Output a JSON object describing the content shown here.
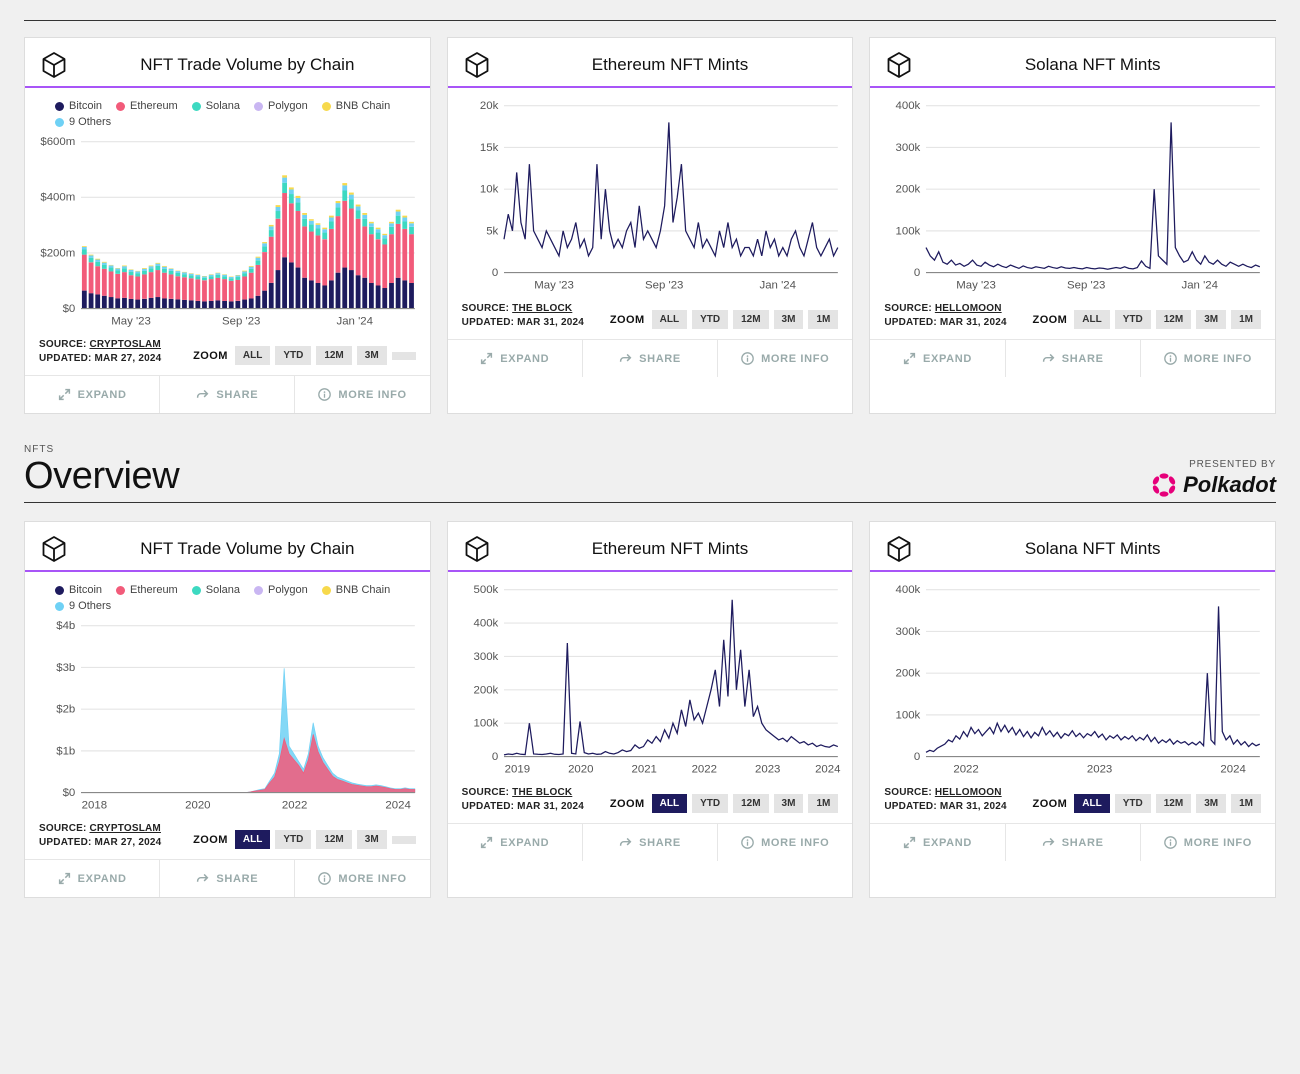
{
  "colors": {
    "line": "#1e1b5e",
    "grid": "#e5e5e5",
    "purple": "#a855f7",
    "legend": {
      "Bitcoin": "#1e1b5e",
      "Ethereum": "#f25b7a",
      "Solana": "#3dd9c1",
      "Polygon": "#c9b6f2",
      "BNB Chain": "#f7d94c",
      "9 Others": "#6fd1f5"
    }
  },
  "section": {
    "kicker": "NFTS",
    "title": "Overview",
    "presented": "PRESENTED BY",
    "brand": "Polkadot"
  },
  "actions": {
    "expand": "EXPAND",
    "share": "SHARE",
    "more": "MORE INFO"
  },
  "zoom_label": "ZOOM",
  "cards": [
    {
      "id": "vol12m",
      "title": "NFT Trade Volume by Chain",
      "type": "stacked-bar",
      "legend": [
        "Bitcoin",
        "Ethereum",
        "Solana",
        "Polygon",
        "BNB Chain",
        "9 Others"
      ],
      "yticks": [
        "$0",
        "$200m",
        "$400m",
        "$600m"
      ],
      "ymax": 650,
      "xticks": [
        "May '23",
        "Sep '23",
        "Jan '24"
      ],
      "xtpos": [
        0.15,
        0.48,
        0.82
      ],
      "series": {
        "Bitcoin": [
          70,
          60,
          55,
          50,
          45,
          40,
          42,
          38,
          35,
          38,
          42,
          45,
          40,
          38,
          36,
          34,
          32,
          30,
          28,
          30,
          32,
          30,
          28,
          30,
          35,
          40,
          50,
          70,
          100,
          150,
          200,
          180,
          160,
          120,
          110,
          100,
          90,
          110,
          140,
          160,
          150,
          130,
          120,
          100,
          90,
          80,
          100,
          120,
          110,
          100
        ],
        "Ethereum": [
          140,
          120,
          110,
          105,
          100,
          95,
          100,
          92,
          90,
          95,
          100,
          105,
          100,
          95,
          90,
          88,
          86,
          84,
          82,
          85,
          88,
          85,
          80,
          82,
          90,
          100,
          120,
          150,
          180,
          200,
          250,
          230,
          220,
          200,
          190,
          185,
          180,
          200,
          220,
          260,
          240,
          220,
          200,
          190,
          180,
          170,
          190,
          210,
          200,
          190
        ],
        "Solana": [
          20,
          18,
          17,
          16,
          15,
          14,
          15,
          14,
          13,
          14,
          15,
          16,
          15,
          14,
          13,
          12,
          12,
          11,
          10,
          11,
          12,
          11,
          10,
          11,
          13,
          15,
          18,
          22,
          26,
          30,
          40,
          36,
          34,
          30,
          28,
          27,
          26,
          30,
          34,
          40,
          36,
          32,
          30,
          28,
          26,
          24,
          28,
          32,
          30,
          28
        ],
        "9 Others": [
          10,
          9,
          9,
          8,
          8,
          7,
          8,
          7,
          7,
          8,
          8,
          9,
          8,
          8,
          7,
          7,
          6,
          6,
          5,
          6,
          6,
          6,
          5,
          6,
          7,
          8,
          10,
          12,
          14,
          16,
          20,
          18,
          17,
          15,
          14,
          14,
          13,
          15,
          17,
          20,
          18,
          16,
          15,
          14,
          13,
          12,
          14,
          16,
          15,
          14
        ],
        "BNB Chain": [
          3,
          3,
          3,
          3,
          2,
          2,
          3,
          2,
          2,
          3,
          3,
          3,
          3,
          2,
          2,
          2,
          2,
          2,
          2,
          2,
          2,
          2,
          2,
          2,
          3,
          3,
          4,
          5,
          6,
          7,
          9,
          8,
          8,
          7,
          6,
          6,
          6,
          7,
          8,
          9,
          8,
          7,
          7,
          6,
          6,
          5,
          6,
          7,
          7,
          6
        ]
      },
      "source_label": "SOURCE:",
      "source_name": "CRYPTOSLAM",
      "updated": "UPDATED: MAR 27, 2024",
      "zoom": [
        "ALL",
        "YTD",
        "12M",
        "3M",
        ""
      ],
      "zoom_active": -1
    },
    {
      "id": "eth12m",
      "title": "Ethereum NFT Mints",
      "type": "line",
      "yticks": [
        "0",
        "5k",
        "10k",
        "15k",
        "20k"
      ],
      "ymax": 20,
      "xticks": [
        "May '23",
        "Sep '23",
        "Jan '24"
      ],
      "xtpos": [
        0.15,
        0.48,
        0.82
      ],
      "values": [
        4,
        7,
        5,
        12,
        6,
        4,
        13,
        5,
        4,
        3,
        5,
        4,
        3,
        2,
        5,
        3,
        4,
        6,
        3,
        4,
        2,
        3,
        13,
        4,
        10,
        5,
        3,
        4,
        3,
        5,
        6,
        3,
        8,
        4,
        5,
        4,
        3,
        5,
        8,
        18,
        6,
        9,
        13,
        5,
        4,
        3,
        6,
        3,
        4,
        3,
        2,
        5,
        3,
        6,
        3,
        4,
        2,
        3,
        3,
        2,
        4,
        2,
        5,
        3,
        4,
        2,
        3,
        2,
        4,
        5,
        3,
        2,
        4,
        6,
        3,
        2,
        3,
        4,
        2,
        3
      ],
      "source_label": "SOURCE:",
      "source_name": "THE BLOCK",
      "updated": "UPDATED: MAR 31, 2024",
      "zoom": [
        "ALL",
        "YTD",
        "12M",
        "3M",
        "1M"
      ],
      "zoom_active": -1
    },
    {
      "id": "sol12m",
      "title": "Solana NFT Mints",
      "type": "line",
      "yticks": [
        "0",
        "100k",
        "200k",
        "300k",
        "400k"
      ],
      "ymax": 400,
      "xticks": [
        "May '23",
        "Sep '23",
        "Jan '24"
      ],
      "xtpos": [
        0.15,
        0.48,
        0.82
      ],
      "values": [
        60,
        40,
        30,
        50,
        25,
        20,
        30,
        18,
        22,
        15,
        20,
        30,
        18,
        15,
        25,
        18,
        14,
        20,
        15,
        12,
        18,
        14,
        10,
        16,
        12,
        10,
        14,
        12,
        10,
        15,
        12,
        10,
        14,
        11,
        10,
        12,
        10,
        9,
        12,
        10,
        9,
        11,
        10,
        8,
        10,
        12,
        10,
        14,
        10,
        9,
        12,
        28,
        15,
        10,
        200,
        40,
        30,
        20,
        360,
        60,
        40,
        25,
        30,
        50,
        30,
        20,
        40,
        25,
        20,
        30,
        20,
        15,
        25,
        20,
        15,
        20,
        15,
        12,
        18,
        14
      ],
      "source_label": "SOURCE:",
      "source_name": "HELLOMOON",
      "updated": "UPDATED: MAR 31, 2024",
      "zoom": [
        "ALL",
        "YTD",
        "12M",
        "3M",
        "1M"
      ],
      "zoom_active": -1
    },
    {
      "id": "volall",
      "title": "NFT Trade Volume by Chain",
      "type": "area-multi",
      "legend": [
        "Bitcoin",
        "Ethereum",
        "Solana",
        "Polygon",
        "BNB Chain",
        "9 Others"
      ],
      "yticks": [
        "$0",
        "$1b",
        "$2b",
        "$3b",
        "$4b"
      ],
      "ymax": 4.3,
      "xticks": [
        "2018",
        "2020",
        "2022",
        "2024"
      ],
      "xtpos": [
        0.04,
        0.35,
        0.64,
        0.95
      ],
      "series": {
        "9 Others": [
          0,
          0,
          0,
          0,
          0,
          0,
          0,
          0,
          0,
          0,
          0,
          0,
          0,
          0,
          0,
          0,
          0,
          0,
          0,
          0,
          0,
          0,
          0,
          0,
          0,
          0,
          0,
          0,
          0,
          0,
          0,
          0,
          0,
          0,
          0,
          0.02,
          0.05,
          0.08,
          0.1,
          0.3,
          0.5,
          1.0,
          3.2,
          1.2,
          1.0,
          0.8,
          0.6,
          1.0,
          1.8,
          1.2,
          0.9,
          0.7,
          0.5,
          0.4,
          0.35,
          0.3,
          0.25,
          0.22,
          0.2,
          0.18,
          0.18,
          0.2,
          0.18,
          0.15,
          0.12,
          0.1,
          0.1,
          0.12,
          0.1,
          0.1
        ],
        "Ethereum": [
          0,
          0,
          0,
          0,
          0,
          0,
          0,
          0,
          0,
          0,
          0,
          0,
          0,
          0,
          0,
          0,
          0,
          0,
          0,
          0,
          0,
          0,
          0,
          0,
          0,
          0,
          0,
          0,
          0,
          0,
          0,
          0,
          0,
          0,
          0,
          0.015,
          0.04,
          0.06,
          0.08,
          0.25,
          0.4,
          0.8,
          1.4,
          1.0,
          0.85,
          0.7,
          0.5,
          0.85,
          1.5,
          1.05,
          0.78,
          0.6,
          0.42,
          0.34,
          0.3,
          0.25,
          0.21,
          0.19,
          0.17,
          0.15,
          0.15,
          0.17,
          0.15,
          0.13,
          0.1,
          0.08,
          0.08,
          0.1,
          0.08,
          0.08
        ]
      },
      "source_label": "SOURCE:",
      "source_name": "CRYPTOSLAM",
      "updated": "UPDATED: MAR 27, 2024",
      "zoom": [
        "ALL",
        "YTD",
        "12M",
        "3M",
        ""
      ],
      "zoom_active": 0
    },
    {
      "id": "ethall",
      "title": "Ethereum NFT Mints",
      "type": "line",
      "yticks": [
        "0",
        "100k",
        "200k",
        "300k",
        "400k",
        "500k"
      ],
      "ymax": 500,
      "xticks": [
        "2019",
        "2020",
        "2021",
        "2022",
        "2023",
        "2024"
      ],
      "xtpos": [
        0.04,
        0.23,
        0.42,
        0.6,
        0.79,
        0.97
      ],
      "values": [
        5,
        8,
        6,
        10,
        7,
        6,
        100,
        8,
        7,
        6,
        8,
        10,
        7,
        6,
        8,
        340,
        10,
        8,
        105,
        12,
        8,
        10,
        7,
        8,
        15,
        10,
        8,
        12,
        20,
        15,
        18,
        35,
        25,
        30,
        50,
        40,
        60,
        45,
        80,
        55,
        100,
        70,
        140,
        90,
        170,
        110,
        130,
        100,
        150,
        200,
        260,
        150,
        350,
        180,
        470,
        200,
        320,
        150,
        260,
        120,
        150,
        100,
        80,
        70,
        60,
        50,
        55,
        45,
        60,
        50,
        40,
        45,
        35,
        40,
        30,
        35,
        30,
        28,
        35,
        30
      ],
      "source_label": "SOURCE:",
      "source_name": "THE BLOCK",
      "updated": "UPDATED: MAR 31, 2024",
      "zoom": [
        "ALL",
        "YTD",
        "12M",
        "3M",
        "1M"
      ],
      "zoom_active": 0
    },
    {
      "id": "solall",
      "title": "Solana NFT Mints",
      "type": "line",
      "yticks": [
        "0",
        "100k",
        "200k",
        "300k",
        "400k"
      ],
      "ymax": 400,
      "xticks": [
        "2022",
        "2023",
        "2024"
      ],
      "xtpos": [
        0.12,
        0.52,
        0.92
      ],
      "values": [
        10,
        15,
        12,
        20,
        25,
        30,
        40,
        35,
        50,
        42,
        60,
        48,
        70,
        55,
        65,
        50,
        60,
        70,
        55,
        80,
        60,
        75,
        58,
        70,
        52,
        65,
        48,
        60,
        45,
        58,
        50,
        70,
        52,
        62,
        48,
        58,
        44,
        55,
        50,
        62,
        48,
        56,
        45,
        55,
        50,
        60,
        46,
        54,
        40,
        50,
        44,
        52,
        40,
        48,
        42,
        50,
        38,
        46,
        40,
        52,
        36,
        46,
        32,
        40,
        34,
        42,
        30,
        38,
        32,
        36,
        28,
        34,
        28,
        36,
        26,
        200,
        40,
        30,
        360,
        60,
        40,
        50,
        30,
        40,
        28,
        36,
        24,
        32,
        26,
        30
      ],
      "source_label": "SOURCE:",
      "source_name": "HELLOMOON",
      "updated": "UPDATED: MAR 31, 2024",
      "zoom": [
        "ALL",
        "YTD",
        "12M",
        "3M",
        "1M"
      ],
      "zoom_active": 0
    }
  ]
}
